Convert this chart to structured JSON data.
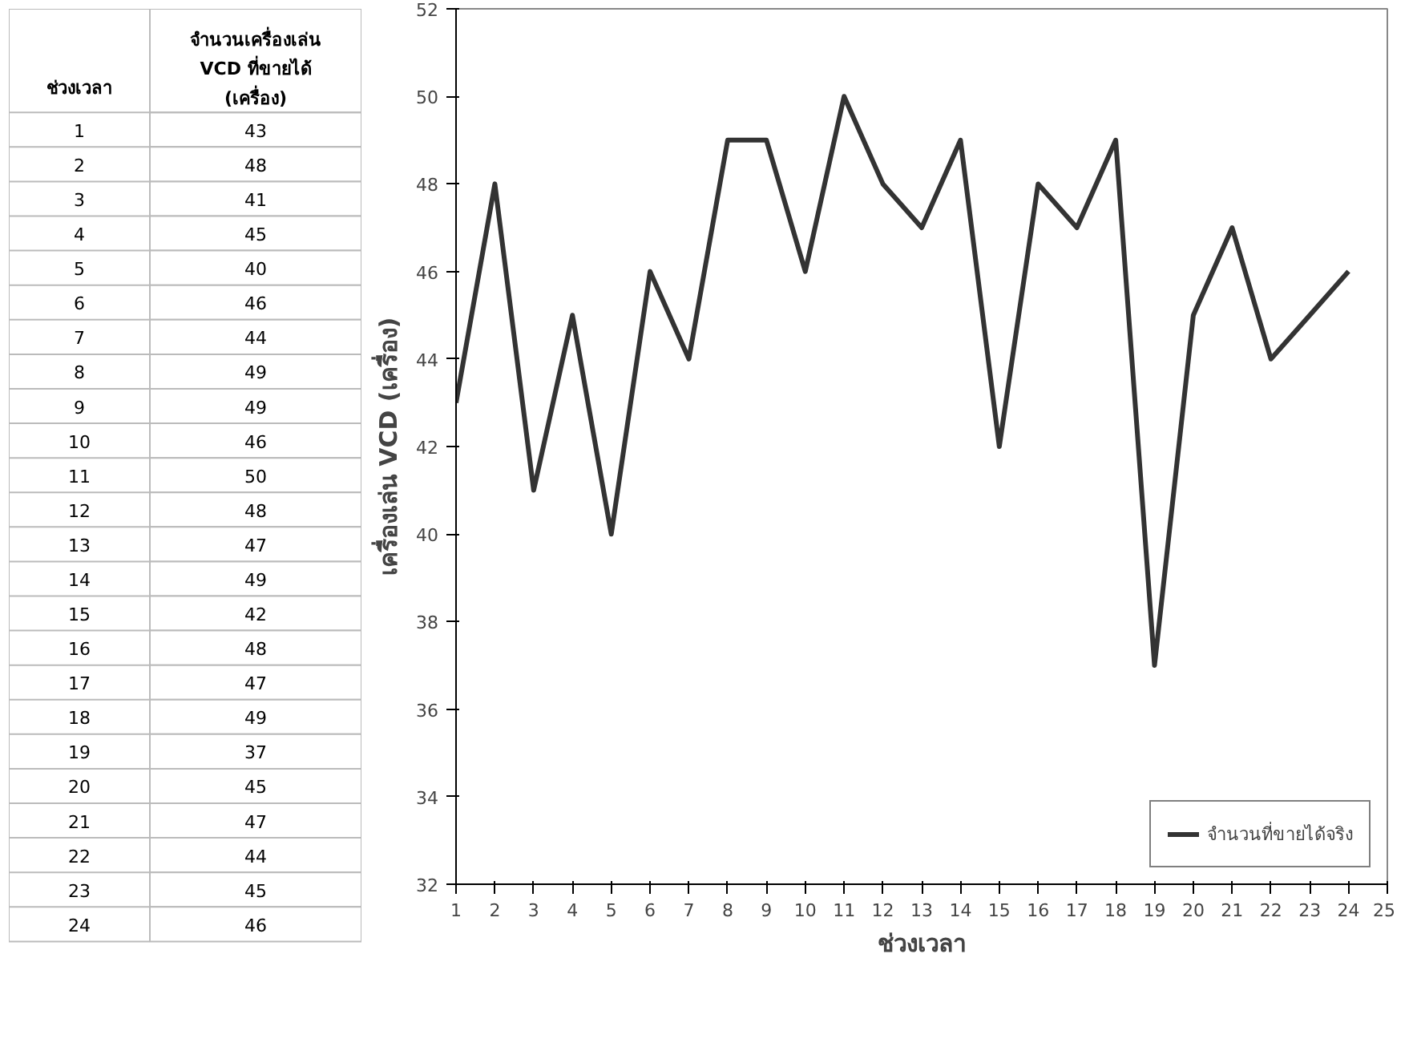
{
  "chart_data": [
    {
      "type": "heatmap",
      "ylabel": "ช่วงเวลา",
      "categories": [
        "จำนวนเครื่องเล่น VCD ที่ขายได้ (เครื่อง)"
      ],
      "y_categories": [
        "1",
        "2",
        "3",
        "4",
        "5",
        "6",
        "7",
        "8",
        "9",
        "10",
        "11",
        "12",
        "13",
        "14",
        "15",
        "16",
        "17",
        "18",
        "19",
        "20",
        "21",
        "22",
        "23",
        "24"
      ],
      "cells": [
        [
          43
        ],
        [
          48
        ],
        [
          41
        ],
        [
          45
        ],
        [
          40
        ],
        [
          46
        ],
        [
          44
        ],
        [
          49
        ],
        [
          49
        ],
        [
          46
        ],
        [
          50
        ],
        [
          48
        ],
        [
          47
        ],
        [
          49
        ],
        [
          42
        ],
        [
          48
        ],
        [
          47
        ],
        [
          49
        ],
        [
          37
        ],
        [
          45
        ],
        [
          47
        ],
        [
          44
        ],
        [
          45
        ],
        [
          46
        ]
      ],
      "data_labels": true
    },
    {
      "type": "line",
      "xlabel": "ช่วงเวลา",
      "ylabel": "เครื่องเล่น VCD (เครื่อง)",
      "x": [
        1,
        2,
        3,
        4,
        5,
        6,
        7,
        8,
        9,
        10,
        11,
        12,
        13,
        14,
        15,
        16,
        17,
        18,
        19,
        20,
        21,
        22,
        23,
        24
      ],
      "series": [
        {
          "name": "จำนวนที่ขายได้จริง",
          "color": "#333333",
          "values": [
            43,
            48,
            41,
            45,
            40,
            46,
            44,
            49,
            49,
            46,
            50,
            48,
            47,
            49,
            42,
            48,
            47,
            49,
            37,
            45,
            47,
            44,
            45,
            46
          ]
        }
      ],
      "xlim": [
        1,
        25
      ],
      "xticks": [
        1,
        2,
        3,
        4,
        5,
        6,
        7,
        8,
        9,
        10,
        11,
        12,
        13,
        14,
        15,
        16,
        17,
        18,
        19,
        20,
        21,
        22,
        23,
        24,
        25
      ],
      "ylim": [
        32,
        52
      ],
      "yticks": [
        32,
        34,
        36,
        38,
        40,
        42,
        44,
        46,
        48,
        50,
        52
      ],
      "legend": "bottom right",
      "grid": false
    }
  ]
}
